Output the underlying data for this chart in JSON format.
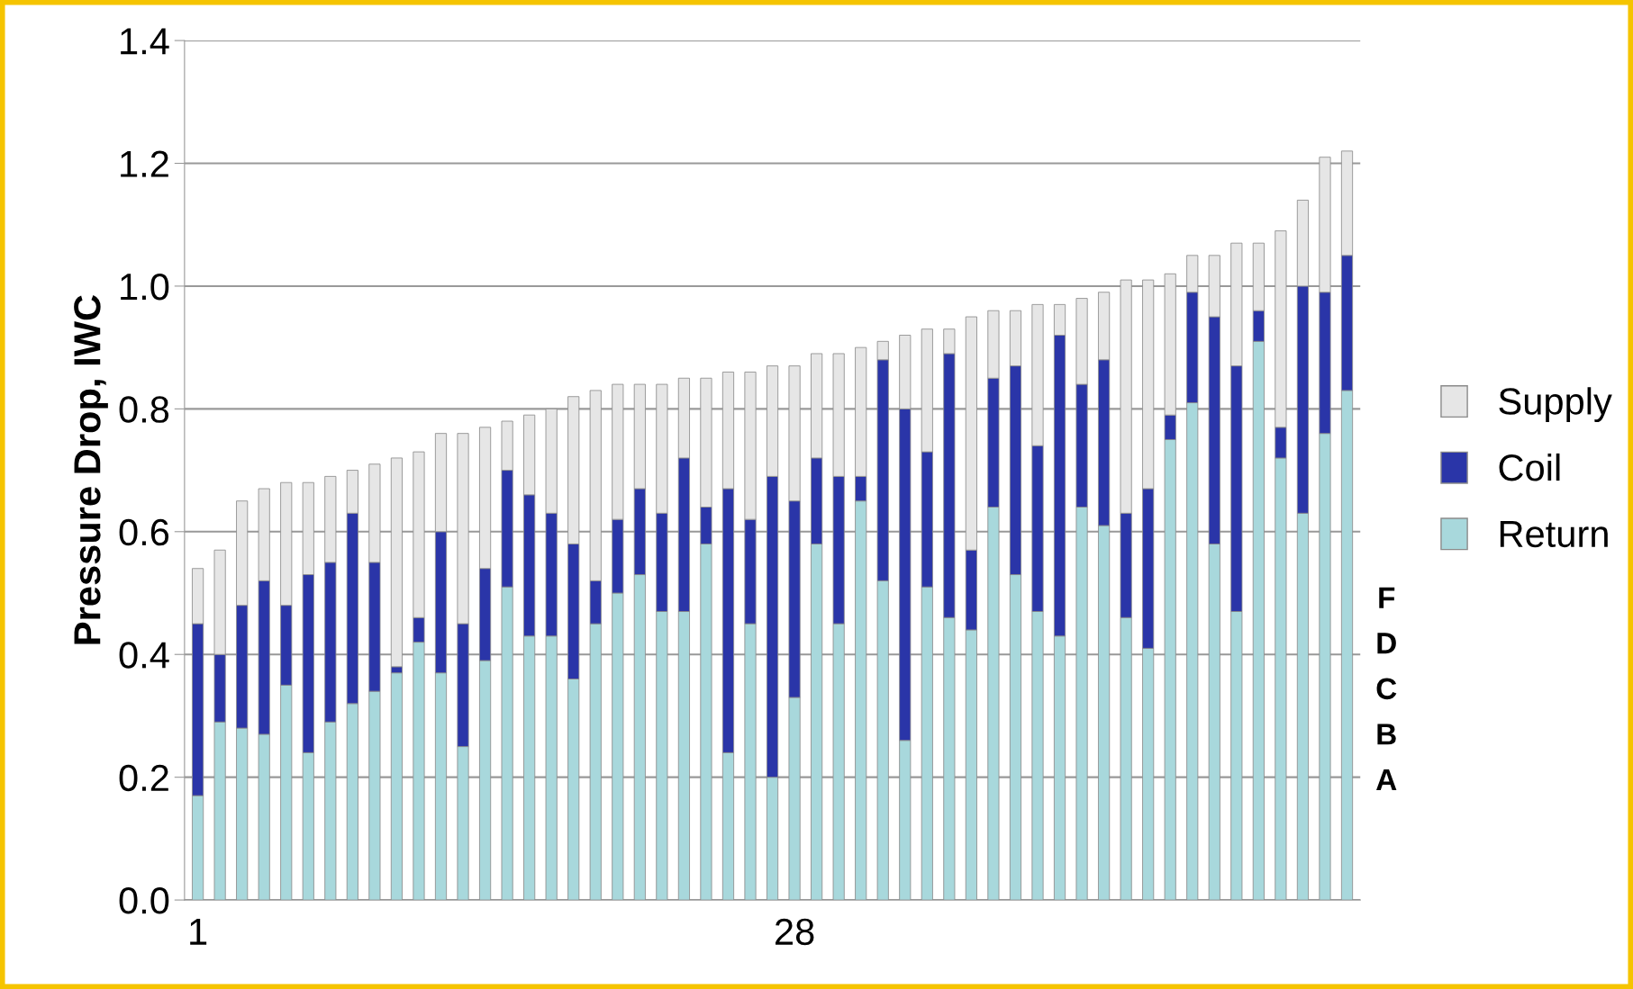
{
  "chart_data": {
    "type": "bar",
    "stacked": true,
    "ylabel": "Pressure Drop, IWC",
    "categories": [
      "1",
      null,
      null,
      null,
      null,
      null,
      null,
      null,
      null,
      null,
      null,
      null,
      null,
      null,
      null,
      null,
      null,
      null,
      null,
      null,
      null,
      null,
      null,
      null,
      null,
      null,
      null,
      "28",
      null,
      null,
      null,
      null,
      null,
      null,
      null,
      null,
      null,
      null,
      null,
      null,
      null,
      null,
      null,
      null,
      null,
      null,
      null,
      null,
      null,
      null,
      null,
      null,
      null
    ],
    "series": [
      {
        "name": "Return",
        "color": "#a8d8dc",
        "values": [
          0.17,
          0.29,
          0.28,
          0.27,
          0.35,
          0.24,
          0.29,
          0.32,
          0.34,
          0.37,
          0.42,
          0.37,
          0.25,
          0.39,
          0.51,
          0.43,
          0.43,
          0.36,
          0.45,
          0.5,
          0.53,
          0.47,
          0.47,
          0.58,
          0.24,
          0.45,
          0.2,
          0.33,
          0.58,
          0.45,
          0.65,
          0.52,
          0.26,
          0.51,
          0.46,
          0.44,
          0.64,
          0.53,
          0.47,
          0.43,
          0.64,
          0.61,
          0.46,
          0.41,
          0.75,
          0.81,
          0.58,
          0.47,
          0.91,
          0.72,
          0.63,
          0.76,
          0.83
        ]
      },
      {
        "name": "Coil",
        "color": "#2a35a8",
        "values": [
          0.28,
          0.11,
          0.2,
          0.25,
          0.13,
          0.29,
          0.26,
          0.31,
          0.21,
          0.01,
          0.04,
          0.23,
          0.2,
          0.15,
          0.19,
          0.23,
          0.2,
          0.22,
          0.07,
          0.12,
          0.14,
          0.16,
          0.25,
          0.06,
          0.43,
          0.17,
          0.49,
          0.32,
          0.14,
          0.24,
          0.04,
          0.36,
          0.54,
          0.22,
          0.43,
          0.13,
          0.21,
          0.34,
          0.27,
          0.49,
          0.2,
          0.27,
          0.17,
          0.26,
          0.04,
          0.18,
          0.37,
          0.4,
          0.05,
          0.05,
          0.37,
          0.23,
          0.22
        ]
      },
      {
        "name": "Supply",
        "color": "#e6e6e6",
        "values": [
          0.09,
          0.17,
          0.17,
          0.15,
          0.2,
          0.15,
          0.14,
          0.07,
          0.16,
          0.34,
          0.27,
          0.16,
          0.31,
          0.23,
          0.08,
          0.13,
          0.17,
          0.24,
          0.31,
          0.22,
          0.17,
          0.21,
          0.13,
          0.21,
          0.19,
          0.24,
          0.18,
          0.22,
          0.17,
          0.2,
          0.21,
          0.03,
          0.12,
          0.2,
          0.04,
          0.38,
          0.11,
          0.09,
          0.23,
          0.05,
          0.14,
          0.11,
          0.38,
          0.34,
          0.23,
          0.06,
          0.1,
          0.2,
          0.11,
          0.32,
          0.14,
          0.22,
          0.17
        ]
      }
    ],
    "ylim": [
      0,
      1.4
    ],
    "yticks": [
      {
        "value": 0,
        "label": "0.0"
      },
      0.2,
      0.4,
      0.6,
      0.8,
      {
        "value": 1,
        "label": "1.0"
      },
      1.2,
      1.4
    ],
    "grid": "y",
    "legend": "right",
    "annotations": [
      "F",
      "D",
      "C",
      "B",
      "A"
    ]
  }
}
